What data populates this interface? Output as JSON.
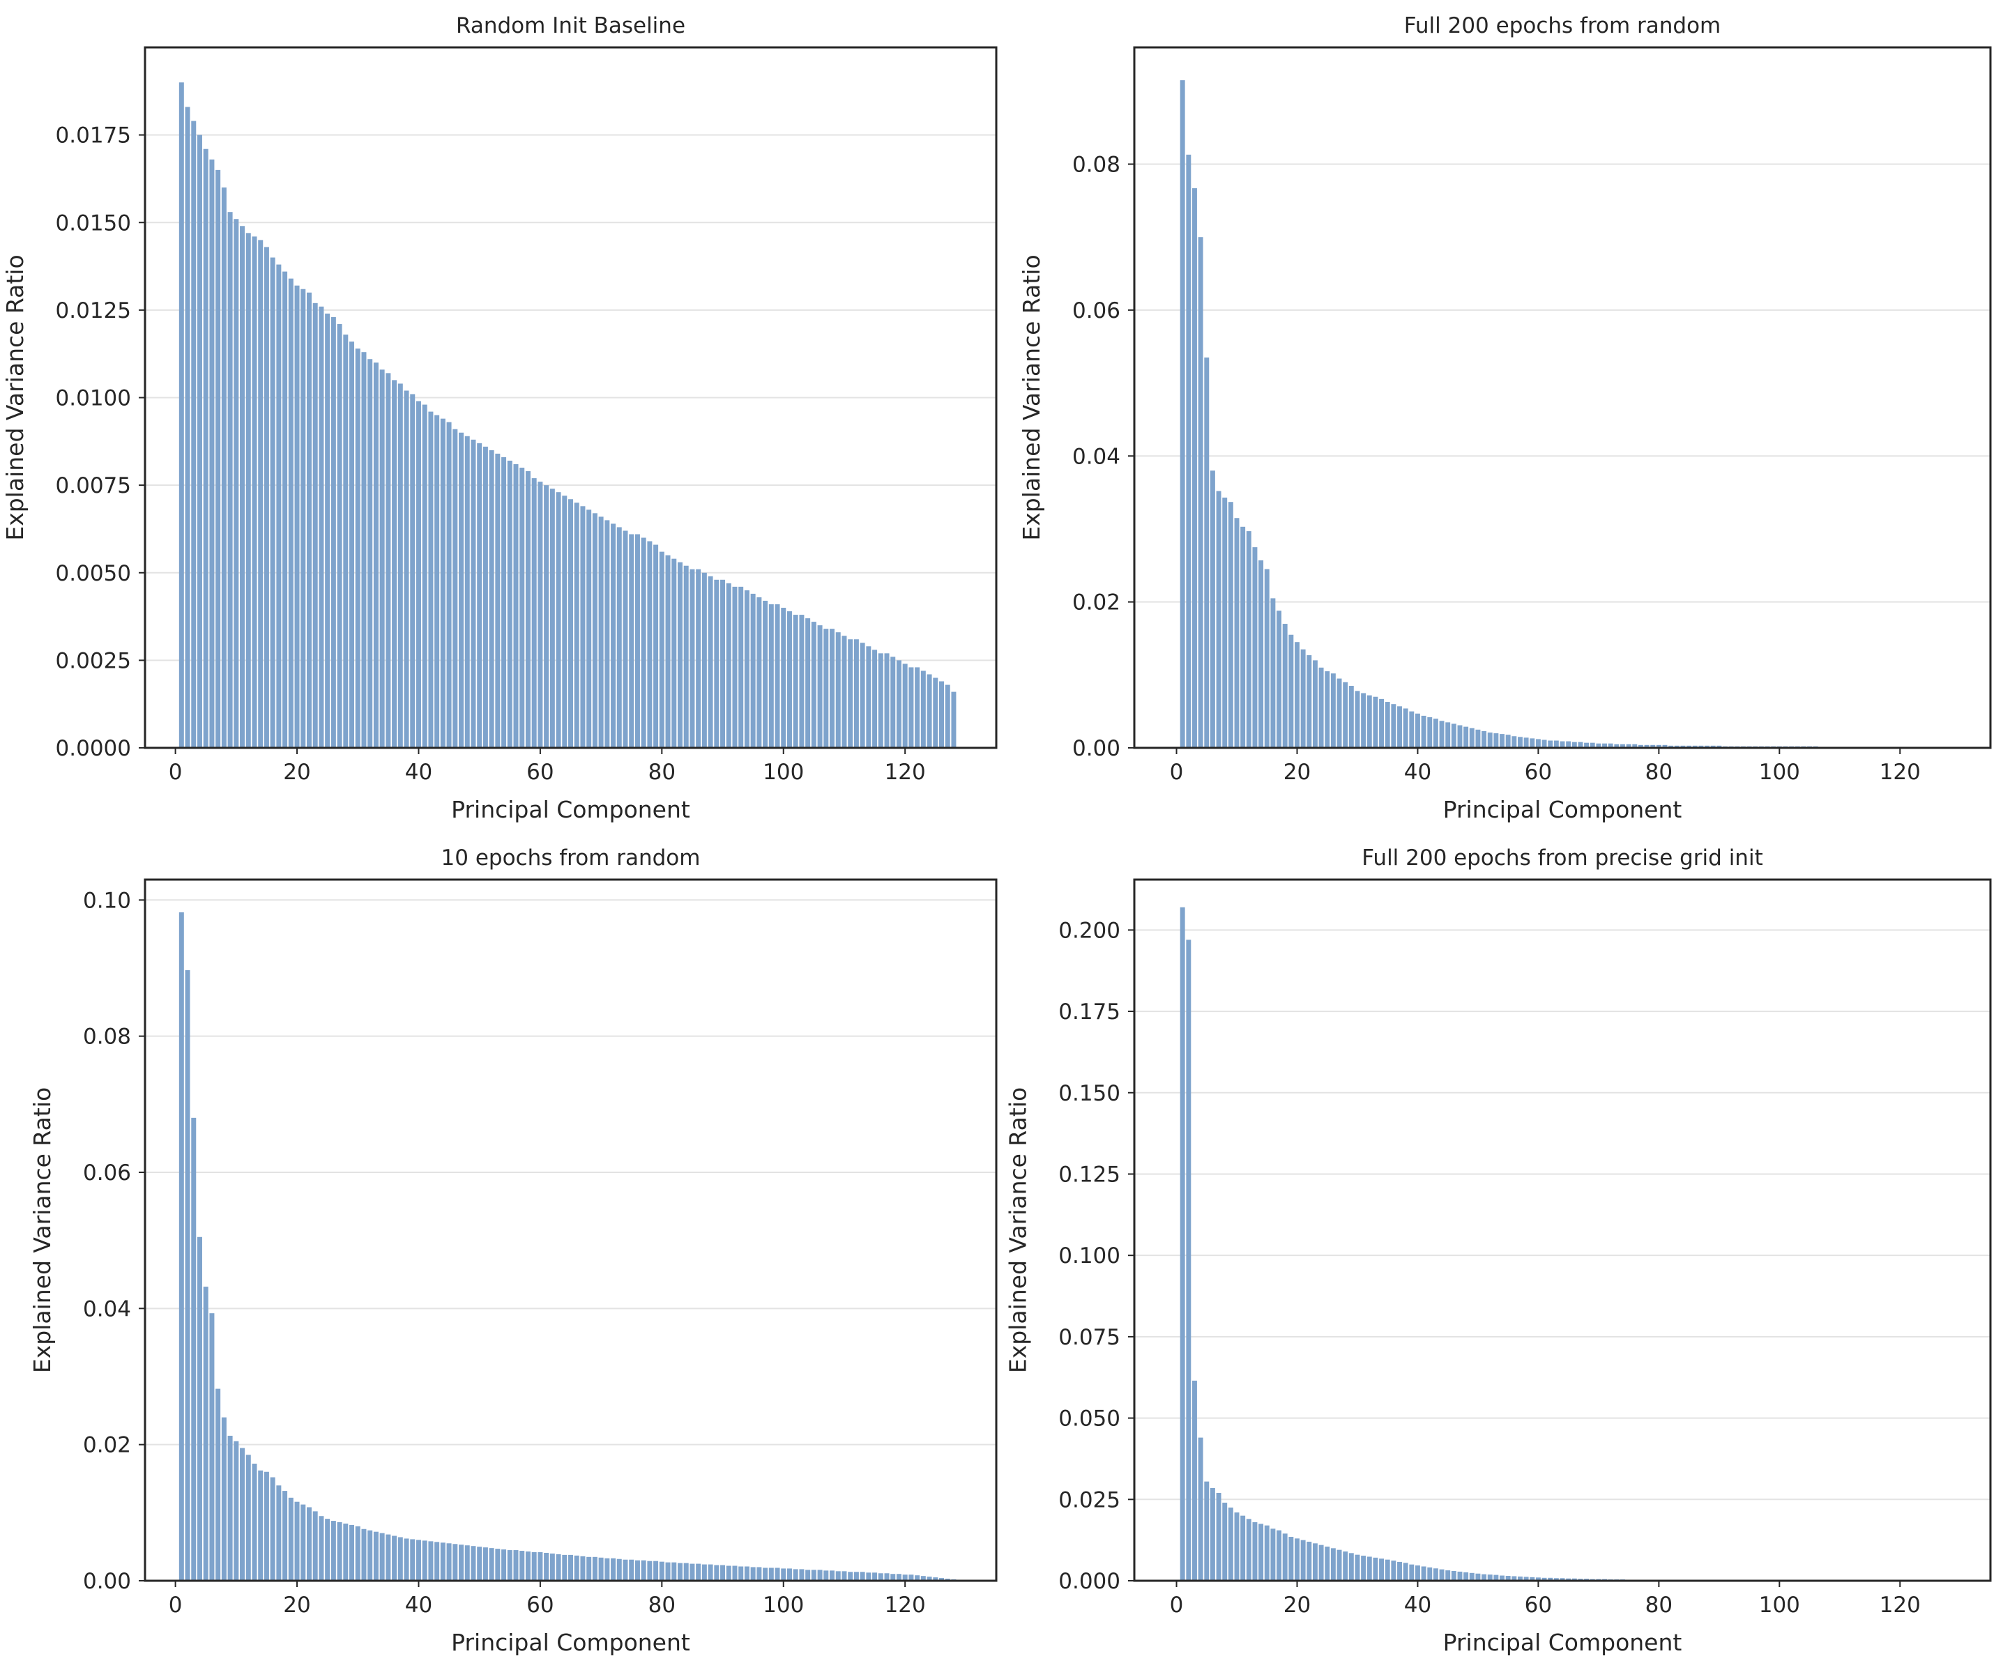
{
  "chart_data": [
    {
      "type": "bar",
      "title": "Random Init Baseline",
      "xlabel": "Principal Component",
      "ylabel": "Explained Variance Ratio",
      "xlim": [
        -5,
        135
      ],
      "ylim": [
        0,
        0.02
      ],
      "xticks": [
        "0",
        "20",
        "40",
        "60",
        "80",
        "100",
        "120"
      ],
      "yticks": [
        "0.0000",
        "0.0025",
        "0.0050",
        "0.0075",
        "0.0100",
        "0.0125",
        "0.0150",
        "0.0175"
      ],
      "grid": "horizontal",
      "x": [
        1,
        2,
        3,
        4,
        5,
        6,
        7,
        8,
        9,
        10,
        11,
        12,
        13,
        14,
        15,
        16,
        17,
        18,
        19,
        20,
        21,
        22,
        23,
        24,
        25,
        26,
        27,
        28,
        29,
        30,
        31,
        32,
        33,
        34,
        35,
        36,
        37,
        38,
        39,
        40,
        41,
        42,
        43,
        44,
        45,
        46,
        47,
        48,
        49,
        50,
        51,
        52,
        53,
        54,
        55,
        56,
        57,
        58,
        59,
        60,
        61,
        62,
        63,
        64,
        65,
        66,
        67,
        68,
        69,
        70,
        71,
        72,
        73,
        74,
        75,
        76,
        77,
        78,
        79,
        80,
        81,
        82,
        83,
        84,
        85,
        86,
        87,
        88,
        89,
        90,
        91,
        92,
        93,
        94,
        95,
        96,
        97,
        98,
        99,
        100,
        101,
        102,
        103,
        104,
        105,
        106,
        107,
        108,
        109,
        110,
        111,
        112,
        113,
        114,
        115,
        116,
        117,
        118,
        119,
        120,
        121,
        122,
        123,
        124,
        125,
        126,
        127,
        128
      ],
      "values": [
        0.019,
        0.0183,
        0.0179,
        0.0175,
        0.0171,
        0.0168,
        0.0165,
        0.016,
        0.0153,
        0.0151,
        0.0149,
        0.0147,
        0.0146,
        0.0145,
        0.0143,
        0.014,
        0.0138,
        0.0136,
        0.0134,
        0.0132,
        0.0131,
        0.013,
        0.0127,
        0.0126,
        0.0124,
        0.0123,
        0.0121,
        0.0118,
        0.0116,
        0.0114,
        0.0113,
        0.0111,
        0.011,
        0.0108,
        0.0107,
        0.0105,
        0.0104,
        0.0102,
        0.0101,
        0.0099,
        0.0098,
        0.0096,
        0.0095,
        0.0094,
        0.0093,
        0.0091,
        0.009,
        0.0089,
        0.0088,
        0.0087,
        0.0086,
        0.0085,
        0.0084,
        0.0083,
        0.0082,
        0.0081,
        0.008,
        0.0079,
        0.0077,
        0.0076,
        0.0075,
        0.0074,
        0.0073,
        0.0072,
        0.0071,
        0.007,
        0.0069,
        0.0068,
        0.0067,
        0.0066,
        0.0065,
        0.0064,
        0.0063,
        0.0062,
        0.0061,
        0.0061,
        0.006,
        0.0059,
        0.0058,
        0.0056,
        0.0055,
        0.0054,
        0.0053,
        0.0052,
        0.0051,
        0.0051,
        0.005,
        0.0049,
        0.0048,
        0.0048,
        0.0047,
        0.0046,
        0.0046,
        0.0045,
        0.0044,
        0.0043,
        0.0042,
        0.0041,
        0.0041,
        0.004,
        0.0039,
        0.0038,
        0.0038,
        0.0037,
        0.0036,
        0.0035,
        0.0034,
        0.0034,
        0.0033,
        0.0032,
        0.0031,
        0.0031,
        0.003,
        0.0029,
        0.0028,
        0.0027,
        0.0027,
        0.0026,
        0.0025,
        0.0024,
        0.0023,
        0.0023,
        0.0022,
        0.0021,
        0.002,
        0.0019,
        0.0018,
        0.0016
      ]
    },
    {
      "type": "bar",
      "title": "Full 200 epochs from random",
      "xlabel": "Principal Component",
      "ylabel": "Explained Variance Ratio",
      "xlim": [
        -7,
        135
      ],
      "ylim": [
        0,
        0.096
      ],
      "xticks": [
        "0",
        "20",
        "40",
        "60",
        "80",
        "100",
        "120"
      ],
      "yticks": [
        "0.00",
        "0.02",
        "0.04",
        "0.06",
        "0.08"
      ],
      "grid": "horizontal",
      "x": [
        1,
        2,
        3,
        4,
        5,
        6,
        7,
        8,
        9,
        10,
        11,
        12,
        13,
        14,
        15,
        16,
        17,
        18,
        19,
        20,
        21,
        22,
        23,
        24,
        25,
        26,
        27,
        28,
        29,
        30,
        31,
        32,
        33,
        34,
        35,
        36,
        37,
        38,
        39,
        40,
        41,
        42,
        43,
        44,
        45,
        46,
        47,
        48,
        49,
        50,
        51,
        52,
        53,
        54,
        55,
        56,
        57,
        58,
        59,
        60,
        61,
        62,
        63,
        64,
        65,
        66,
        67,
        68,
        69,
        70,
        71,
        72,
        73,
        74,
        75,
        76,
        77,
        78,
        79,
        80,
        81,
        82,
        83,
        84,
        85,
        86,
        87,
        88,
        89,
        90,
        91,
        92,
        93,
        94,
        95,
        96,
        97,
        98,
        99,
        100,
        101,
        102,
        103,
        104,
        105,
        106,
        107,
        108,
        109,
        110,
        111,
        112,
        113,
        114,
        115,
        116,
        117,
        118,
        119,
        120,
        121,
        122,
        123,
        124,
        125,
        126,
        127,
        128
      ],
      "values": [
        0.0915,
        0.0813,
        0.0767,
        0.07,
        0.0535,
        0.038,
        0.0352,
        0.0343,
        0.0337,
        0.0315,
        0.0303,
        0.0297,
        0.0275,
        0.0257,
        0.0245,
        0.0205,
        0.0188,
        0.017,
        0.0155,
        0.0145,
        0.0135,
        0.0127,
        0.012,
        0.011,
        0.0105,
        0.0102,
        0.0095,
        0.009,
        0.0085,
        0.0078,
        0.0075,
        0.0072,
        0.007,
        0.0067,
        0.0063,
        0.006,
        0.0057,
        0.0054,
        0.005,
        0.0047,
        0.0044,
        0.0042,
        0.004,
        0.0037,
        0.0035,
        0.0033,
        0.0031,
        0.0029,
        0.0027,
        0.0025,
        0.0023,
        0.0021,
        0.002,
        0.0019,
        0.0018,
        0.0016,
        0.0015,
        0.0014,
        0.0013,
        0.0012,
        0.0011,
        0.001,
        0.001,
        0.0009,
        0.0009,
        0.0008,
        0.0008,
        0.0007,
        0.0007,
        0.0006,
        0.0006,
        0.0006,
        0.0005,
        0.0005,
        0.0005,
        0.0005,
        0.0004,
        0.0004,
        0.0004,
        0.0004,
        0.0004,
        0.0003,
        0.0003,
        0.0003,
        0.0003,
        0.0003,
        0.0003,
        0.0003,
        0.0003,
        0.0003,
        0.0002,
        0.0002,
        0.0002,
        0.0002,
        0.0002,
        0.0002,
        0.0002,
        0.0002,
        0.0002,
        0.0002,
        0.0002,
        0.0002,
        0.0002,
        0.0002,
        0.0002,
        0.0002,
        0.0001,
        0.0001,
        0.0001,
        0.0001,
        0.0001,
        0.0001,
        0.0001,
        0.0001,
        0.0001,
        0.0001,
        0.0001,
        0.0001,
        0.0001,
        0.0001,
        0.0001,
        0.0001,
        0.0001,
        0.0001,
        0.0001,
        0.0001,
        0.0001,
        0.0001
      ]
    },
    {
      "type": "bar",
      "title": "10 epochs from random",
      "xlabel": "Principal Component",
      "ylabel": "Explained Variance Ratio",
      "xlim": [
        -5,
        135
      ],
      "ylim": [
        0,
        0.103
      ],
      "xticks": [
        "0",
        "20",
        "40",
        "60",
        "80",
        "100",
        "120"
      ],
      "yticks": [
        "0.00",
        "0.02",
        "0.04",
        "0.06",
        "0.08",
        "0.10"
      ],
      "grid": "horizontal",
      "x": [
        1,
        2,
        3,
        4,
        5,
        6,
        7,
        8,
        9,
        10,
        11,
        12,
        13,
        14,
        15,
        16,
        17,
        18,
        19,
        20,
        21,
        22,
        23,
        24,
        25,
        26,
        27,
        28,
        29,
        30,
        31,
        32,
        33,
        34,
        35,
        36,
        37,
        38,
        39,
        40,
        41,
        42,
        43,
        44,
        45,
        46,
        47,
        48,
        49,
        50,
        51,
        52,
        53,
        54,
        55,
        56,
        57,
        58,
        59,
        60,
        61,
        62,
        63,
        64,
        65,
        66,
        67,
        68,
        69,
        70,
        71,
        72,
        73,
        74,
        75,
        76,
        77,
        78,
        79,
        80,
        81,
        82,
        83,
        84,
        85,
        86,
        87,
        88,
        89,
        90,
        91,
        92,
        93,
        94,
        95,
        96,
        97,
        98,
        99,
        100,
        101,
        102,
        103,
        104,
        105,
        106,
        107,
        108,
        109,
        110,
        111,
        112,
        113,
        114,
        115,
        116,
        117,
        118,
        119,
        120,
        121,
        122,
        123,
        124,
        125,
        126,
        127,
        128
      ],
      "values": [
        0.0982,
        0.0897,
        0.068,
        0.0505,
        0.0432,
        0.0393,
        0.0282,
        0.024,
        0.0213,
        0.0205,
        0.0195,
        0.0185,
        0.0172,
        0.0162,
        0.016,
        0.0152,
        0.014,
        0.0132,
        0.0122,
        0.0116,
        0.0112,
        0.0108,
        0.0102,
        0.0095,
        0.0091,
        0.0088,
        0.0086,
        0.0084,
        0.0082,
        0.008,
        0.0076,
        0.0074,
        0.0072,
        0.007,
        0.0068,
        0.0066,
        0.0064,
        0.0062,
        0.0061,
        0.006,
        0.0059,
        0.0058,
        0.0057,
        0.0056,
        0.0055,
        0.0054,
        0.0053,
        0.0052,
        0.0051,
        0.005,
        0.0049,
        0.0048,
        0.0047,
        0.0046,
        0.0045,
        0.0045,
        0.0044,
        0.0043,
        0.0042,
        0.0042,
        0.0041,
        0.004,
        0.0039,
        0.0038,
        0.0038,
        0.0037,
        0.0036,
        0.0035,
        0.0035,
        0.0034,
        0.0033,
        0.0033,
        0.0032,
        0.0031,
        0.0031,
        0.003,
        0.003,
        0.0029,
        0.0029,
        0.0028,
        0.0027,
        0.0027,
        0.0026,
        0.0026,
        0.0025,
        0.0025,
        0.0024,
        0.0024,
        0.0023,
        0.0023,
        0.0022,
        0.0022,
        0.0021,
        0.0021,
        0.002,
        0.002,
        0.0019,
        0.0019,
        0.0019,
        0.0018,
        0.0018,
        0.0017,
        0.0017,
        0.0016,
        0.0016,
        0.0016,
        0.0015,
        0.0015,
        0.0014,
        0.0014,
        0.0013,
        0.0013,
        0.0013,
        0.0012,
        0.0012,
        0.0011,
        0.0011,
        0.001,
        0.001,
        0.0009,
        0.0009,
        0.0008,
        0.0007,
        0.0006,
        0.0005,
        0.0004,
        0.0003,
        0.0002
      ]
    },
    {
      "type": "bar",
      "title": "Full 200 epochs from precise grid init",
      "xlabel": "Principal Component",
      "ylabel": "Explained Variance Ratio",
      "xlim": [
        -7,
        135
      ],
      "ylim": [
        0,
        0.2155
      ],
      "xticks": [
        "0",
        "20",
        "40",
        "60",
        "80",
        "100",
        "120"
      ],
      "yticks": [
        "0.000",
        "0.025",
        "0.050",
        "0.075",
        "0.100",
        "0.125",
        "0.150",
        "0.175",
        "0.200"
      ],
      "grid": "horizontal",
      "x": [
        1,
        2,
        3,
        4,
        5,
        6,
        7,
        8,
        9,
        10,
        11,
        12,
        13,
        14,
        15,
        16,
        17,
        18,
        19,
        20,
        21,
        22,
        23,
        24,
        25,
        26,
        27,
        28,
        29,
        30,
        31,
        32,
        33,
        34,
        35,
        36,
        37,
        38,
        39,
        40,
        41,
        42,
        43,
        44,
        45,
        46,
        47,
        48,
        49,
        50,
        51,
        52,
        53,
        54,
        55,
        56,
        57,
        58,
        59,
        60,
        61,
        62,
        63,
        64,
        65,
        66,
        67,
        68,
        69,
        70,
        71,
        72,
        73,
        74,
        75,
        76,
        77,
        78,
        79,
        80,
        81,
        82,
        83,
        84,
        85,
        86,
        87,
        88,
        89,
        90,
        91,
        92,
        93,
        94,
        95,
        96,
        97,
        98,
        99,
        100,
        101,
        102,
        103,
        104,
        105,
        106,
        107,
        108,
        109,
        110,
        111,
        112,
        113,
        114,
        115,
        116,
        117,
        118,
        119,
        120,
        121,
        122,
        123,
        124,
        125,
        126,
        127,
        128
      ],
      "values": [
        0.207,
        0.197,
        0.0615,
        0.044,
        0.0305,
        0.0285,
        0.027,
        0.024,
        0.0225,
        0.021,
        0.02,
        0.019,
        0.018,
        0.0175,
        0.017,
        0.016,
        0.0155,
        0.0145,
        0.0135,
        0.013,
        0.0125,
        0.012,
        0.0115,
        0.011,
        0.0105,
        0.01,
        0.0095,
        0.009,
        0.0085,
        0.008,
        0.0077,
        0.0074,
        0.0071,
        0.0068,
        0.0065,
        0.0062,
        0.0058,
        0.0055,
        0.005,
        0.0047,
        0.0044,
        0.0041,
        0.0038,
        0.0035,
        0.0032,
        0.003,
        0.0028,
        0.0026,
        0.0024,
        0.0022,
        0.002,
        0.0019,
        0.0018,
        0.0016,
        0.0015,
        0.0014,
        0.0013,
        0.0012,
        0.0011,
        0.001,
        0.0009,
        0.0009,
        0.0008,
        0.0008,
        0.0007,
        0.0007,
        0.0006,
        0.0006,
        0.0005,
        0.0005,
        0.0005,
        0.0004,
        0.0004,
        0.0004,
        0.0003,
        0.0003,
        0.0003,
        0.0003,
        0.0002,
        0.0002,
        0.0002,
        0.0002,
        0.0002,
        0.0002,
        0.0002,
        0.0001,
        0.0001,
        0.0001,
        0.0001,
        0.0001,
        0.0001,
        0.0001,
        0.0001,
        0.0001,
        0.0001,
        0.0001,
        0.0001,
        0.0001,
        0.0001,
        0.0001,
        0.0001,
        0.0001,
        0.0001,
        0.0001,
        0.0001,
        0.0001,
        0.0001,
        0.0001,
        0.0001,
        0.0001,
        0.0001,
        0.0001,
        0.0001,
        0.0001,
        0.0001,
        0.0001,
        0.0001,
        0.0001,
        0.0001,
        0.0001,
        0.0001,
        0.0001,
        0.0001,
        0.0001,
        0.0001,
        0.0001,
        0.0001,
        0.0001
      ]
    }
  ],
  "colors": {
    "bar": "#7ea3cc",
    "grid": "#e3e3e3",
    "axis": "#262626",
    "text": "#262626",
    "background": "#ffffff"
  }
}
